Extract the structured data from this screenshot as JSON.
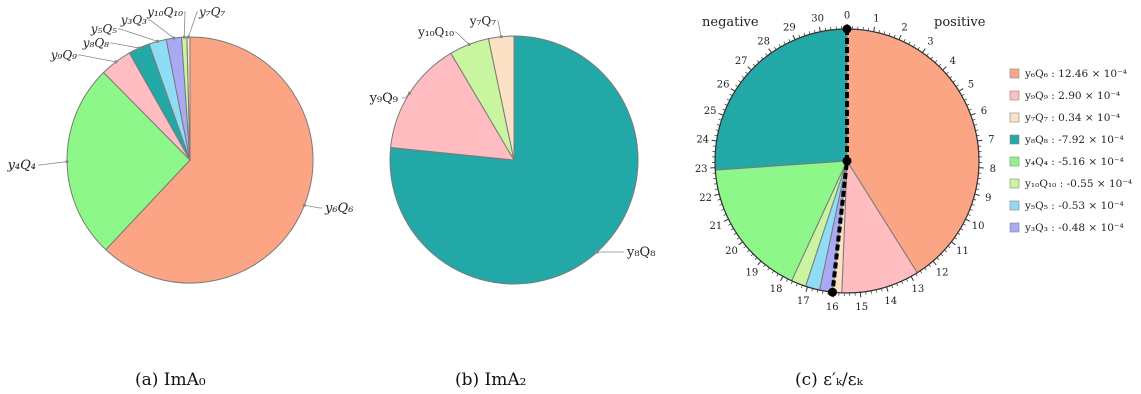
{
  "chart_data": [
    {
      "type": "pie",
      "caption": "(a) ImA₀",
      "slices": [
        {
          "label": "y₆Q₆",
          "value": 62.0,
          "color": "#fca584"
        },
        {
          "label": "y₄Q₄",
          "value": 25.6,
          "color": "#8ef78a"
        },
        {
          "label": "y₉Q₉",
          "value": 4.2,
          "color": "#ffbcc1"
        },
        {
          "label": "y₈Q₈",
          "value": 2.8,
          "color": "#22a8a6"
        },
        {
          "label": "y₅Q₅",
          "value": 2.3,
          "color": "#8fdcf5"
        },
        {
          "label": "y₃Q₃",
          "value": 2.0,
          "color": "#a9a9f6"
        },
        {
          "label": "y₁₀Q₁₀",
          "value": 0.7,
          "color": "#c9f5a0"
        },
        {
          "label": "y₇Q₇",
          "value": 0.4,
          "color": "#fde1c4"
        }
      ]
    },
    {
      "type": "pie",
      "caption": "(b) ImA₂",
      "slices": [
        {
          "label": "y₈Q₈",
          "value": 76.6,
          "color": "#22a8a6"
        },
        {
          "label": "y₉Q₉",
          "value": 14.9,
          "color": "#ffbcc1"
        },
        {
          "label": "y₁₀Q₁₀",
          "value": 5.2,
          "color": "#c9f5a0"
        },
        {
          "label": "y₇Q₇",
          "value": 3.3,
          "color": "#fde1c4"
        }
      ]
    },
    {
      "type": "pie",
      "caption": "(c) ε′ₖ/εₖ",
      "negative_label": "negative",
      "positive_label": "positive",
      "dial_ticks": [
        "0",
        "1",
        "2",
        "3",
        "4",
        "5",
        "6",
        "7",
        "8",
        "9",
        "10",
        "11",
        "12",
        "13",
        "14",
        "15",
        "16",
        "17",
        "18",
        "19",
        "20",
        "21",
        "22",
        "23",
        "24",
        "25",
        "26",
        "27",
        "28",
        "29",
        "30"
      ],
      "dial_max": 31,
      "legend": [
        {
          "label": "y₆Q₆ : 12.46 × 10⁻⁴",
          "value": 12.46,
          "color": "#fca584"
        },
        {
          "label": "y₉Q₉ : 2.90 × 10⁻⁴",
          "value": 2.9,
          "color": "#ffbcc1"
        },
        {
          "label": "y₇Q₇ : 0.34 × 10⁻⁴",
          "value": 0.34,
          "color": "#fde1c4"
        },
        {
          "label": "y₈Q₈ : -7.92 × 10⁻⁴",
          "value": -7.92,
          "color": "#22a8a6"
        },
        {
          "label": "y₄Q₄ : -5.16 × 10⁻⁴",
          "value": -5.16,
          "color": "#8ef78a"
        },
        {
          "label": "y₁₀Q₁₀ : -0.55 × 10⁻⁴",
          "value": -0.55,
          "color": "#c9f5a0"
        },
        {
          "label": "y₅Q₅ : -0.53 × 10⁻⁴",
          "value": -0.53,
          "color": "#8fdcf5"
        },
        {
          "label": "y₃Q₃ : -0.48 × 10⁻⁴",
          "value": -0.48,
          "color": "#a9a9f6"
        }
      ]
    }
  ]
}
